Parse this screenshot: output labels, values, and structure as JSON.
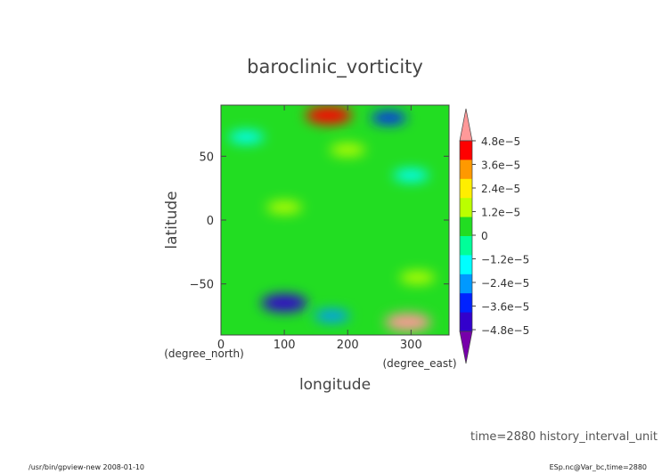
{
  "chart_data": {
    "type": "heatmap",
    "title": "baroclinic_vorticity",
    "xlabel": "longitude",
    "ylabel": "latitude",
    "x_unit": "(degree_east)",
    "y_unit": "(degree_north)",
    "xlim": [
      0,
      360
    ],
    "ylim": [
      -90,
      90
    ],
    "x_ticks": [
      "0",
      "100",
      "200",
      "300"
    ],
    "x_tick_values": [
      0,
      100,
      200,
      300
    ],
    "y_ticks": [
      "50",
      "0",
      "−50"
    ],
    "y_tick_values": [
      50,
      0,
      -50
    ],
    "colorbar": {
      "labels": [
        "4.8e−5",
        "3.6e−5",
        "2.4e−5",
        "1.2e−5",
        "0",
        "−1.2e−5",
        "−2.4e−5",
        "−3.6e−5",
        "−4.8e−5"
      ],
      "values": [
        4.8e-05,
        3.6e-05,
        2.4e-05,
        1.2e-05,
        0,
        -1.2e-05,
        -2.4e-05,
        -3.6e-05,
        -4.8e-05
      ],
      "colors": [
        "#ff9999",
        "#ff0000",
        "#ff9900",
        "#ffee00",
        "#bbff00",
        "#22dd22",
        "#00ff99",
        "#00ffff",
        "#0099ff",
        "#0022ff",
        "#3300cc",
        "#7700aa"
      ]
    },
    "features": [
      {
        "lon": 170,
        "lat": 82,
        "value": 4e-05
      },
      {
        "lon": 295,
        "lat": -80,
        "value": 4.5e-05
      },
      {
        "lon": 265,
        "lat": 80,
        "value": -3e-05
      },
      {
        "lon": 100,
        "lat": -65,
        "value": -3.5e-05
      },
      {
        "lon": 175,
        "lat": -75,
        "value": -2e-05
      },
      {
        "lon": 200,
        "lat": 55,
        "value": 1.2e-05
      },
      {
        "lon": 100,
        "lat": 10,
        "value": 1e-05
      },
      {
        "lon": 310,
        "lat": -45,
        "value": 1.5e-05
      },
      {
        "lon": 40,
        "lat": 65,
        "value": -1e-05
      },
      {
        "lon": 300,
        "lat": 35,
        "value": -1e-05
      }
    ]
  },
  "annotation": "time=2880  history_interval_unit",
  "footer": {
    "left": "/usr/bin/gpview-new  2008-01-10",
    "right": "ESp.nc@Var_bc,time=2880"
  }
}
